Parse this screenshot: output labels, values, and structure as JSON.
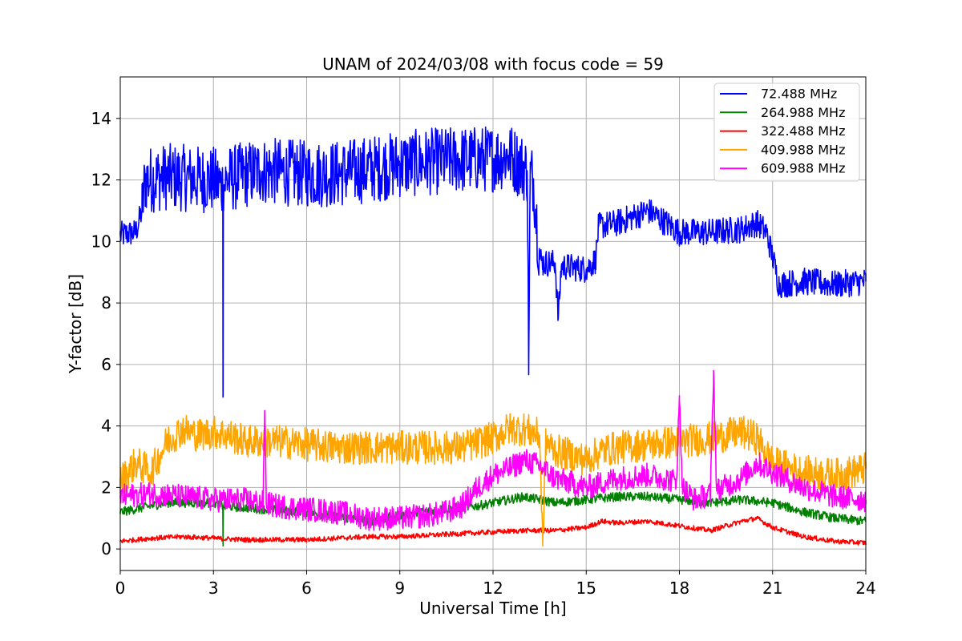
{
  "chart_data": {
    "type": "line",
    "title": "UNAM of 2024/03/08 with focus code = 59",
    "xlabel": "Universal Time [h]",
    "ylabel": "Y-factor [dB]",
    "xlim": [
      0,
      24
    ],
    "ylim": [
      -0.7,
      15.35
    ],
    "xticks": [
      0,
      3,
      6,
      9,
      12,
      15,
      18,
      21,
      24
    ],
    "yticks": [
      0,
      2,
      4,
      6,
      8,
      10,
      12,
      14
    ],
    "grid": true,
    "legend_position": "top-right",
    "series": [
      {
        "name": "72.488 MHz",
        "color": "#0000ff",
        "x": [
          0,
          0.5,
          0.7,
          0.8,
          1.5,
          3,
          3.3,
          3.31,
          3.32,
          3.4,
          4.5,
          6,
          7,
          9,
          10,
          12,
          12.5,
          13.1,
          13.15,
          13.2,
          13.3,
          13.5,
          13.6,
          14,
          14.1,
          14.2,
          15,
          15.3,
          15.4,
          16,
          17,
          18,
          19,
          20,
          20.5,
          20.8,
          21.0,
          21.2,
          22,
          23,
          24
        ],
        "y": [
          10.2,
          10.3,
          11.0,
          12.0,
          12.1,
          12.0,
          11.8,
          5.0,
          11.8,
          12.0,
          12.3,
          12.2,
          12.2,
          12.5,
          12.6,
          12.7,
          12.8,
          12.3,
          6.2,
          12.2,
          12.0,
          9.5,
          9.3,
          9.3,
          7.5,
          9.2,
          9.1,
          9.4,
          10.5,
          10.6,
          11.0,
          10.3,
          10.3,
          10.4,
          10.6,
          10.3,
          9.5,
          8.6,
          8.7,
          8.6,
          8.7
        ]
      },
      {
        "name": "264.988 MHz",
        "color": "#008000",
        "x": [
          0,
          1.5,
          3,
          3.3,
          3.31,
          3.32,
          4.5,
          6,
          8,
          9,
          10.5,
          11.5,
          12.5,
          13.0,
          13.5,
          14,
          15,
          16,
          17,
          18,
          19,
          20,
          21,
          22,
          23,
          24
        ],
        "y": [
          1.2,
          1.5,
          1.5,
          1.4,
          0.1,
          1.4,
          1.3,
          1.2,
          0.9,
          1.1,
          1.3,
          1.4,
          1.6,
          1.7,
          1.6,
          1.5,
          1.6,
          1.7,
          1.7,
          1.6,
          1.5,
          1.6,
          1.5,
          1.2,
          1.0,
          0.9
        ]
      },
      {
        "name": "322.488 MHz",
        "color": "#ff0000",
        "x": [
          0,
          1,
          2,
          3,
          4,
          5,
          6,
          7,
          8,
          9,
          10,
          11,
          12,
          13,
          14,
          15,
          15.5,
          16,
          17,
          18,
          19,
          20,
          20.5,
          21,
          22,
          23,
          24
        ],
        "y": [
          0.25,
          0.35,
          0.4,
          0.35,
          0.3,
          0.3,
          0.3,
          0.35,
          0.4,
          0.4,
          0.45,
          0.5,
          0.55,
          0.6,
          0.6,
          0.7,
          0.9,
          0.85,
          0.9,
          0.75,
          0.6,
          0.9,
          1.0,
          0.7,
          0.4,
          0.25,
          0.2
        ]
      },
      {
        "name": "409.988 MHz",
        "color": "#ffa500",
        "x": [
          0,
          0.5,
          1,
          1.5,
          2,
          2.5,
          3,
          3.5,
          4,
          5,
          6,
          7,
          8,
          9,
          10,
          11,
          12,
          12.5,
          13,
          13.5,
          13.6,
          13.7,
          14,
          15,
          15.5,
          16,
          17,
          18,
          19,
          20,
          20.5,
          21,
          22,
          23,
          24
        ],
        "y": [
          2.2,
          2.8,
          2.5,
          3.5,
          3.9,
          3.7,
          3.8,
          3.7,
          3.5,
          3.5,
          3.4,
          3.3,
          3.3,
          3.3,
          3.3,
          3.3,
          3.6,
          3.9,
          3.9,
          3.7,
          0.1,
          3.5,
          3.2,
          2.9,
          3.2,
          3.3,
          3.4,
          3.5,
          3.6,
          3.8,
          3.6,
          2.8,
          2.5,
          2.4,
          2.6
        ]
      },
      {
        "name": "609.988 MHz",
        "color": "#ff00ff",
        "x": [
          0,
          1,
          2,
          3,
          4,
          4.6,
          4.65,
          4.7,
          5,
          6,
          7,
          8,
          9,
          10,
          10.5,
          11,
          11.5,
          12,
          12.5,
          13,
          13.5,
          14,
          15,
          16,
          17,
          17.5,
          17.9,
          18.0,
          18.1,
          18.5,
          19,
          19.1,
          19.2,
          20,
          20.5,
          21,
          22,
          23,
          24
        ],
        "y": [
          1.7,
          1.8,
          1.7,
          1.6,
          1.6,
          1.5,
          4.5,
          1.5,
          1.4,
          1.3,
          1.2,
          1.0,
          1.0,
          1.1,
          1.2,
          1.4,
          2.0,
          2.4,
          2.6,
          2.9,
          2.7,
          2.3,
          2.0,
          2.3,
          2.4,
          2.3,
          2.2,
          4.8,
          2.0,
          1.6,
          1.8,
          5.8,
          1.9,
          2.3,
          2.8,
          2.5,
          2.0,
          1.7,
          1.6
        ]
      }
    ]
  }
}
